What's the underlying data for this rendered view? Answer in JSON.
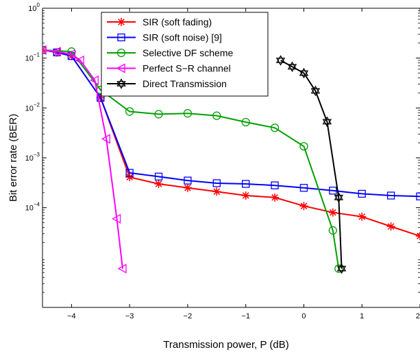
{
  "chart_data": {
    "type": "line",
    "xlabel": "Transmission power, P  (dB)",
    "ylabel": "Bit error rate (BER)",
    "xlim": [
      -4.5,
      2.0
    ],
    "ylim": [
      1e-06,
      1
    ],
    "yscale": "log",
    "x_ticks": [
      -4,
      -3,
      -2,
      -1,
      0,
      1,
      2
    ],
    "x_tick_labels": [
      "−4",
      "−3",
      "−2",
      "−1",
      "0",
      "1",
      "2"
    ],
    "y_ticks": [
      1,
      0.1,
      0.01,
      0.001,
      0.0001
    ],
    "y_tick_base": "10",
    "y_tick_exponents": [
      "0",
      "−1",
      "−2",
      "−3",
      "−4"
    ],
    "grid": false,
    "legend_position": "top-center",
    "series": [
      {
        "name": "SIR (soft fading)",
        "color": "#ff0000",
        "marker": "asterisk",
        "x": [
          -4.5,
          -4.25,
          -4.0,
          -3.5,
          -3.0,
          -2.5,
          -2.0,
          -1.5,
          -1.0,
          -0.5,
          0.0,
          0.5,
          1.0,
          1.5,
          2.0
        ],
        "y": [
          0.145,
          0.13,
          0.11,
          0.016,
          0.00041,
          0.0003,
          0.00025,
          0.00021,
          0.000175,
          0.00016,
          0.000108,
          8e-05,
          6.6e-05,
          4.2e-05,
          2.7e-05
        ]
      },
      {
        "name": "SIR (soft noise)   [9]",
        "color": "#0000ff",
        "marker": "square",
        "x": [
          -4.5,
          -4.25,
          -4.0,
          -3.5,
          -3.0,
          -2.5,
          -2.0,
          -1.5,
          -1.0,
          -0.5,
          0.0,
          0.5,
          1.0,
          1.5,
          2.0
        ],
        "y": [
          0.145,
          0.13,
          0.11,
          0.016,
          0.0005,
          0.00042,
          0.00035,
          0.00031,
          0.0003,
          0.00028,
          0.00025,
          0.00022,
          0.00019,
          0.000175,
          0.000168
        ]
      },
      {
        "name": "Selective DF scheme",
        "color": "#00a000",
        "marker": "circle",
        "x": [
          -4.5,
          -4.0,
          -3.5,
          -3.0,
          -2.5,
          -2.0,
          -1.5,
          -1.0,
          -0.5,
          0.0,
          0.5,
          0.6
        ],
        "y": [
          0.145,
          0.135,
          0.023,
          0.0085,
          0.0075,
          0.0078,
          0.007,
          0.0052,
          0.004,
          0.0017,
          3.5e-05,
          6e-06
        ]
      },
      {
        "name": "Perfect S−R channel",
        "color": "#ff00ff",
        "marker": "triangle-left",
        "x": [
          -4.5,
          -4.25,
          -4.0,
          -3.85,
          -3.6,
          -3.4,
          -3.22,
          -3.12
        ],
        "y": [
          0.145,
          0.135,
          0.12,
          0.09,
          0.036,
          0.0024,
          6e-05,
          6e-06
        ]
      },
      {
        "name": "Direct Transmission",
        "color": "#000000",
        "marker": "hexagram",
        "x": [
          -0.4,
          -0.2,
          0.0,
          0.2,
          0.4,
          0.6,
          0.65
        ],
        "y": [
          0.09,
          0.067,
          0.05,
          0.022,
          0.0053,
          0.00016,
          6e-06
        ]
      }
    ]
  }
}
